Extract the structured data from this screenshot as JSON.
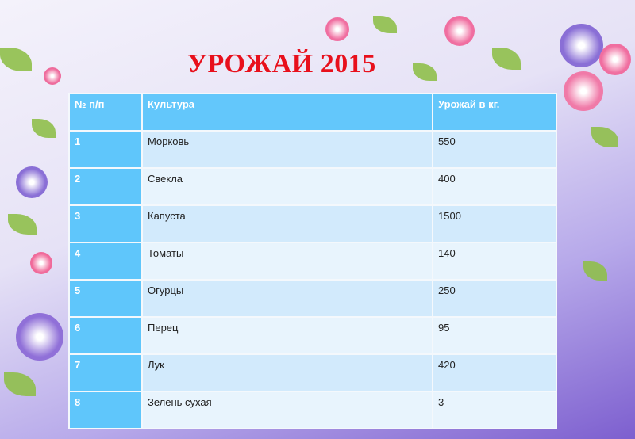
{
  "title": "УРОЖАЙ 2015",
  "table": {
    "headers": [
      "№ п/п",
      "Культура",
      "Урожай в кг."
    ],
    "rows": [
      [
        "1",
        "Морковь",
        "550"
      ],
      [
        "2",
        "Свекла",
        "400"
      ],
      [
        "3",
        "Капуста",
        "1500"
      ],
      [
        "4",
        "Томаты",
        "140"
      ],
      [
        "5",
        "Огурцы",
        "250"
      ],
      [
        "6",
        "Перец",
        "95"
      ],
      [
        "7",
        "Лук",
        "420"
      ],
      [
        "8",
        "Зелень сухая",
        "3"
      ]
    ]
  },
  "colors": {
    "title": "#e8101c",
    "header": "#63c7fb",
    "row_odd": "#d2eafc",
    "row_even": "#e8f4fd"
  }
}
